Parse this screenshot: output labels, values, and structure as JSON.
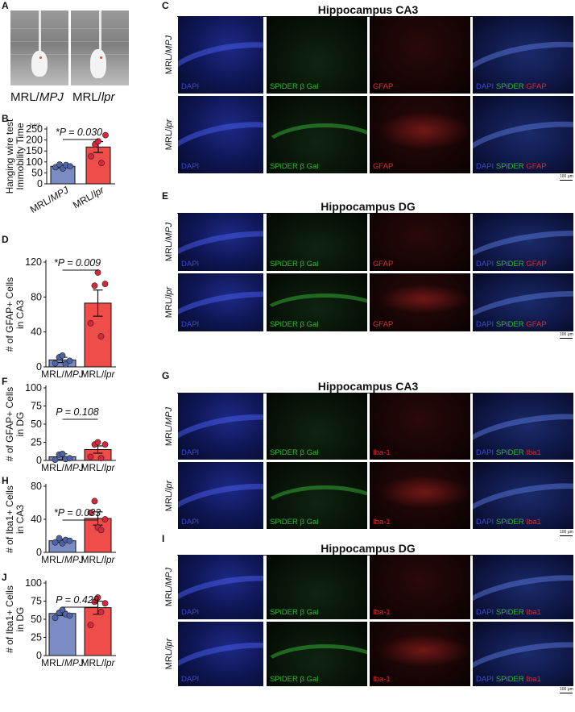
{
  "panel_letters": [
    "A",
    "B",
    "C",
    "D",
    "E",
    "F",
    "G",
    "H",
    "I",
    "J"
  ],
  "panel_a": {
    "labels": [
      {
        "prefix": "MRL/",
        "suffix": "MPJ"
      },
      {
        "prefix": "MRL/",
        "suffix": "lpr"
      }
    ]
  },
  "group_labels": [
    {
      "prefix": "MRL/",
      "suffix": "MPJ"
    },
    {
      "prefix": "MRL/",
      "suffix": "lpr"
    }
  ],
  "colors": {
    "mpj": "#7b8cc4",
    "lpr": "#ef4d4a",
    "mpj_dot": "#4f63a7",
    "lpr_dot": "#d7263d"
  },
  "chart_data": [
    {
      "panel": "B",
      "type": "bar",
      "categories": [
        "MRL/MPJ",
        "MRL/lpr"
      ],
      "values": [
        80,
        168
      ],
      "errors": [
        7,
        25
      ],
      "points": [
        [
          76,
          88,
          70,
          86,
          80
        ],
        [
          126,
          180,
          194,
          95,
          222
        ]
      ],
      "ylim": [
        0,
        250
      ],
      "yticks": [
        0,
        50,
        100,
        150,
        200,
        250
      ],
      "ylabel": [
        "Hanging wire test",
        "Immobility Time"
      ],
      "unit": "[sec]",
      "pvalue": "*P = 0.030"
    },
    {
      "panel": "D",
      "type": "bar",
      "categories": [
        "MRL/MPJ",
        "MRL/lpr"
      ],
      "values": [
        8,
        73
      ],
      "errors": [
        3,
        15
      ],
      "points": [
        [
          4,
          11,
          13,
          3,
          7
        ],
        [
          50,
          93,
          108,
          35,
          95
        ]
      ],
      "ylim": [
        0,
        120
      ],
      "yticks": [
        0,
        40,
        80,
        120
      ],
      "ylabel": [
        "# of GFAP+ Cells",
        "in CA3"
      ],
      "pvalue": "*P = 0.009"
    },
    {
      "panel": "F",
      "type": "bar",
      "categories": [
        "MRL/MPJ",
        "MRL/lpr"
      ],
      "values": [
        5,
        15
      ],
      "errors": [
        4,
        5
      ],
      "points": [
        [
          1,
          8,
          9,
          2,
          3
        ],
        [
          5,
          22,
          25,
          3,
          22
        ]
      ],
      "ylim": [
        0,
        100
      ],
      "yticks": [
        0,
        25,
        50,
        75,
        100
      ],
      "ylabel": [
        "# of GFAP+ Cells",
        "in DG"
      ],
      "pvalue": "P = 0.108"
    },
    {
      "panel": "H",
      "type": "bar",
      "categories": [
        "MRL/MPJ",
        "MRL/lpr"
      ],
      "values": [
        14,
        41
      ],
      "errors": [
        2,
        8
      ],
      "points": [
        [
          12,
          17,
          11,
          15,
          14
        ],
        [
          48,
          62,
          30,
          27,
          40
        ]
      ],
      "ylim": [
        0,
        80
      ],
      "yticks": [
        0,
        40,
        80
      ],
      "ylabel": [
        "# of Iba1+ Cells",
        "in CA3"
      ],
      "pvalue": "*P = 0.033"
    },
    {
      "panel": "J",
      "type": "bar",
      "categories": [
        "MRL/MPJ",
        "MRL/lpr"
      ],
      "values": [
        58,
        66
      ],
      "errors": [
        3,
        9
      ],
      "points": [
        [
          52,
          59,
          63,
          57,
          55
        ],
        [
          42,
          74,
          80,
          60,
          72
        ]
      ],
      "ylim": [
        0,
        100
      ],
      "yticks": [
        0,
        25,
        50,
        75,
        100
      ],
      "ylabel": [
        "# of Iba1+ Cells",
        "in DG"
      ],
      "pvalue": "P = 0.429"
    }
  ],
  "micro_panels": [
    {
      "letter": "C",
      "title": "Hippocampus CA3",
      "channels": [
        "DAPI",
        "SPiDER β Gal",
        "GFAP",
        [
          "DAPI",
          "SPiDER",
          "GFAP"
        ]
      ]
    },
    {
      "letter": "E",
      "title": "Hippocampus DG",
      "channels": [
        "DAPI",
        "SPiDER β Gal",
        "GFAP",
        [
          "DAPI",
          "SPiDER",
          "GFAP"
        ]
      ]
    },
    {
      "letter": "G",
      "title": "Hippocampus CA3",
      "channels": [
        "DAPI",
        "SPiDER β Gal",
        "Iba-1",
        [
          "DAPI",
          "SPiDER",
          "Iba1"
        ]
      ]
    },
    {
      "letter": "I",
      "title": "Hippocampus DG",
      "channels": [
        "DAPI",
        "SPiDER β Gal",
        "Iba-1",
        [
          "DAPI",
          "SPiDER",
          "Iba1"
        ]
      ]
    }
  ],
  "scale_bar": "100 μm"
}
